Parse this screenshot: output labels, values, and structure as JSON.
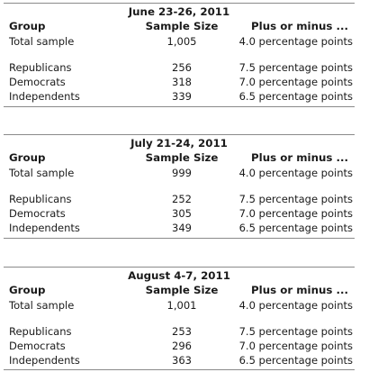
{
  "columns": {
    "group": "Group",
    "sample_size": "Sample Size",
    "margin": "Plus or minus ..."
  },
  "tables": [
    {
      "period": "June 23-26, 2011",
      "rows": [
        {
          "group": "Total sample",
          "size": "1,005",
          "margin": "4.0 percentage points"
        },
        {
          "group": "Republicans",
          "size": "256",
          "margin": "7.5 percentage points"
        },
        {
          "group": "Democrats",
          "size": "318",
          "margin": "7.0 percentage points"
        },
        {
          "group": "Independents",
          "size": "339",
          "margin": "6.5 percentage points"
        }
      ]
    },
    {
      "period": "July 21-24, 2011",
      "rows": [
        {
          "group": "Total sample",
          "size": "999",
          "margin": "4.0 percentage points"
        },
        {
          "group": "Republicans",
          "size": "252",
          "margin": "7.5 percentage points"
        },
        {
          "group": "Democrats",
          "size": "305",
          "margin": "7.0 percentage points"
        },
        {
          "group": "Independents",
          "size": "349",
          "margin": "6.5 percentage points"
        }
      ]
    },
    {
      "period": "August 4-7, 2011",
      "rows": [
        {
          "group": "Total sample",
          "size": "1,001",
          "margin": "4.0 percentage points"
        },
        {
          "group": "Republicans",
          "size": "253",
          "margin": "7.5 percentage points"
        },
        {
          "group": "Democrats",
          "size": "296",
          "margin": "7.0 percentage points"
        },
        {
          "group": "Independents",
          "size": "363",
          "margin": "6.5 percentage points"
        }
      ]
    }
  ]
}
